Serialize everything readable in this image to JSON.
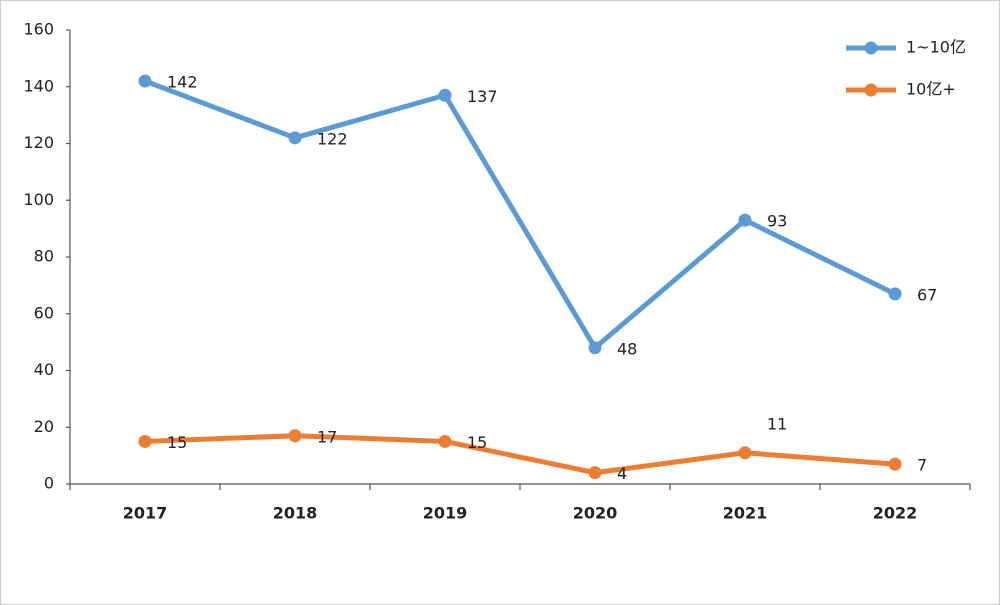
{
  "chart_data": {
    "type": "line",
    "categories": [
      "2017",
      "2018",
      "2019",
      "2020",
      "2021",
      "2022"
    ],
    "series": [
      {
        "name": "1~10亿",
        "color": "#5b9bd5",
        "values": [
          142,
          122,
          137,
          48,
          93,
          67
        ]
      },
      {
        "name": "10亿+",
        "color": "#ed7d31",
        "values": [
          15,
          17,
          15,
          4,
          11,
          7
        ]
      }
    ],
    "ylim": [
      0,
      160
    ],
    "yticks": [
      0,
      20,
      40,
      60,
      80,
      100,
      120,
      140,
      160
    ],
    "grid": false,
    "legend": "top-right"
  }
}
